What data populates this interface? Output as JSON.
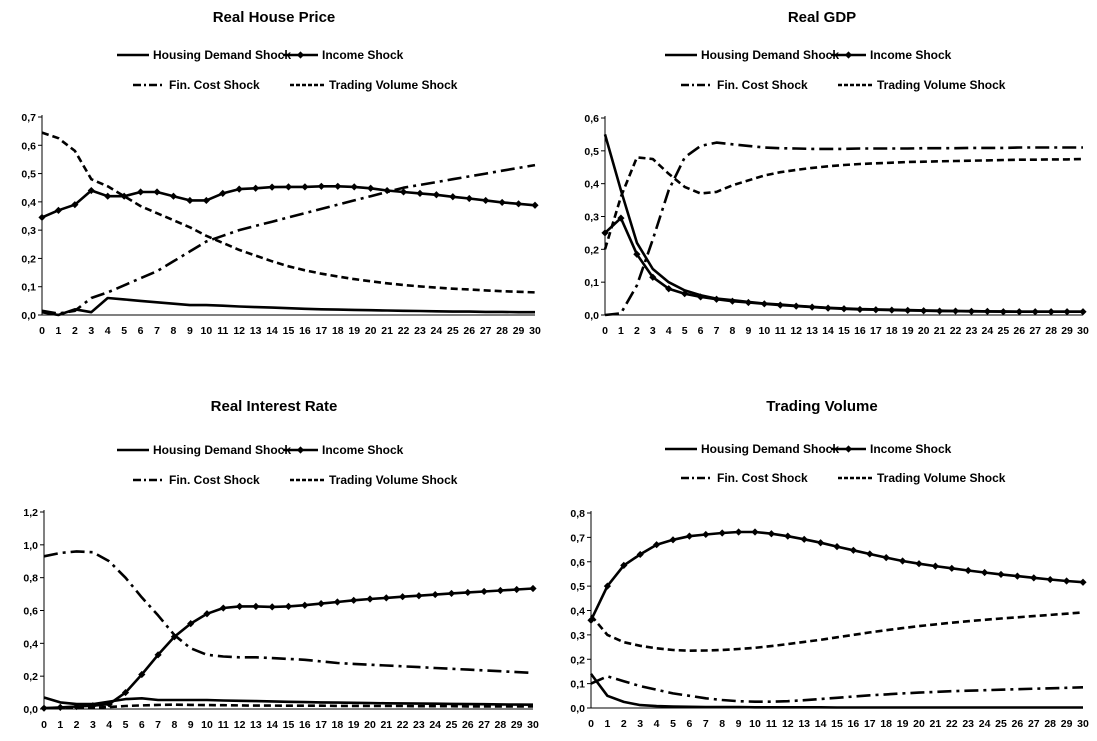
{
  "chart_data": [
    {
      "type": "line",
      "title": "Real House Price",
      "x": [
        0,
        1,
        2,
        3,
        4,
        5,
        6,
        7,
        8,
        9,
        10,
        11,
        12,
        13,
        14,
        15,
        16,
        17,
        18,
        19,
        20,
        21,
        22,
        23,
        24,
        25,
        26,
        27,
        28,
        29,
        30
      ],
      "x_ticks": [
        "0",
        "1",
        "2",
        "3",
        "4",
        "5",
        "6",
        "7",
        "8",
        "9",
        "10",
        "11",
        "12",
        "13",
        "14",
        "15",
        "16",
        "17",
        "18",
        "19",
        "20",
        "21",
        "22",
        "23",
        "24",
        "25",
        "26",
        "27",
        "28",
        "29",
        "30"
      ],
      "ylim": [
        0,
        0.7
      ],
      "y_ticks": [
        "0,0",
        "0,1",
        "0,2",
        "0,3",
        "0,4",
        "0,5",
        "0,6",
        "0,7"
      ],
      "grid": false,
      "legend": "top",
      "series": [
        {
          "name": "Housing Demand Shock",
          "style": "solid",
          "values": [
            0.01,
            0.0,
            0.02,
            0.01,
            0.06,
            0.055,
            0.05,
            0.045,
            0.04,
            0.035,
            0.035,
            0.033,
            0.03,
            0.028,
            0.026,
            0.024,
            0.022,
            0.02,
            0.019,
            0.018,
            0.017,
            0.016,
            0.015,
            0.014,
            0.013,
            0.012,
            0.012,
            0.011,
            0.011,
            0.01,
            0.01
          ]
        },
        {
          "name": "Income Shock",
          "style": "solid-diamond",
          "values": [
            0.345,
            0.37,
            0.39,
            0.44,
            0.42,
            0.42,
            0.435,
            0.435,
            0.42,
            0.405,
            0.405,
            0.43,
            0.445,
            0.448,
            0.452,
            0.453,
            0.453,
            0.455,
            0.455,
            0.453,
            0.448,
            0.44,
            0.435,
            0.43,
            0.425,
            0.418,
            0.412,
            0.405,
            0.398,
            0.393,
            0.388
          ]
        },
        {
          "name": "Fin. Cost Shock",
          "style": "dash-dot",
          "values": [
            0.015,
            0.005,
            0.015,
            0.06,
            0.08,
            0.105,
            0.13,
            0.155,
            0.19,
            0.225,
            0.26,
            0.28,
            0.3,
            0.315,
            0.33,
            0.345,
            0.36,
            0.375,
            0.39,
            0.405,
            0.42,
            0.435,
            0.45,
            0.46,
            0.47,
            0.48,
            0.49,
            0.5,
            0.51,
            0.52,
            0.53
          ]
        },
        {
          "name": "Trading Volume Shock",
          "style": "dashed",
          "values": [
            0.645,
            0.625,
            0.58,
            0.48,
            0.455,
            0.42,
            0.385,
            0.36,
            0.335,
            0.31,
            0.28,
            0.255,
            0.23,
            0.21,
            0.19,
            0.172,
            0.158,
            0.146,
            0.136,
            0.127,
            0.119,
            0.112,
            0.106,
            0.101,
            0.097,
            0.093,
            0.09,
            0.087,
            0.084,
            0.082,
            0.08
          ]
        }
      ]
    },
    {
      "type": "line",
      "title": "Real GDP",
      "x": [
        0,
        1,
        2,
        3,
        4,
        5,
        6,
        7,
        8,
        9,
        10,
        11,
        12,
        13,
        14,
        15,
        16,
        17,
        18,
        19,
        20,
        21,
        22,
        23,
        24,
        25,
        26,
        27,
        28,
        29,
        30
      ],
      "x_ticks": [
        "0",
        "1",
        "2",
        "3",
        "4",
        "5",
        "6",
        "7",
        "8",
        "9",
        "10",
        "11",
        "12",
        "13",
        "14",
        "15",
        "16",
        "17",
        "18",
        "19",
        "20",
        "21",
        "22",
        "23",
        "24",
        "25",
        "26",
        "27",
        "28",
        "29",
        "30"
      ],
      "ylim": [
        0,
        0.6
      ],
      "y_ticks": [
        "0,0",
        "0,1",
        "0,2",
        "0,3",
        "0,4",
        "0,5",
        "0,6"
      ],
      "grid": false,
      "legend": "top",
      "series": [
        {
          "name": "Housing Demand Shock",
          "style": "solid",
          "values": [
            0.55,
            0.38,
            0.22,
            0.14,
            0.1,
            0.075,
            0.06,
            0.05,
            0.045,
            0.04,
            0.035,
            0.032,
            0.028,
            0.025,
            0.022,
            0.02,
            0.018,
            0.017,
            0.016,
            0.015,
            0.014,
            0.013,
            0.012,
            0.012,
            0.011,
            0.011,
            0.01,
            0.01,
            0.01,
            0.01,
            0.01
          ]
        },
        {
          "name": "Income Shock",
          "style": "solid-diamond",
          "values": [
            0.25,
            0.295,
            0.185,
            0.115,
            0.08,
            0.065,
            0.055,
            0.048,
            0.042,
            0.038,
            0.034,
            0.03,
            0.027,
            0.024,
            0.021,
            0.019,
            0.017,
            0.016,
            0.015,
            0.014,
            0.013,
            0.012,
            0.012,
            0.011,
            0.011,
            0.01,
            0.01,
            0.01,
            0.01,
            0.01,
            0.01
          ]
        },
        {
          "name": "Fin. Cost Shock",
          "style": "dash-dot",
          "values": [
            0.0,
            0.005,
            0.09,
            0.23,
            0.38,
            0.48,
            0.515,
            0.525,
            0.52,
            0.515,
            0.51,
            0.508,
            0.507,
            0.506,
            0.506,
            0.506,
            0.507,
            0.507,
            0.507,
            0.507,
            0.508,
            0.508,
            0.508,
            0.509,
            0.509,
            0.509,
            0.51,
            0.51,
            0.51,
            0.51,
            0.51
          ]
        },
        {
          "name": "Trading Volume Shock",
          "style": "dashed",
          "values": [
            0.2,
            0.36,
            0.48,
            0.475,
            0.43,
            0.39,
            0.37,
            0.375,
            0.395,
            0.41,
            0.425,
            0.435,
            0.442,
            0.448,
            0.453,
            0.457,
            0.46,
            0.462,
            0.464,
            0.466,
            0.467,
            0.468,
            0.469,
            0.47,
            0.471,
            0.472,
            0.473,
            0.473,
            0.474,
            0.474,
            0.475
          ]
        }
      ]
    },
    {
      "type": "line",
      "title": "Real Interest Rate",
      "x": [
        0,
        1,
        2,
        3,
        4,
        5,
        6,
        7,
        8,
        9,
        10,
        11,
        12,
        13,
        14,
        15,
        16,
        17,
        18,
        19,
        20,
        21,
        22,
        23,
        24,
        25,
        26,
        27,
        28,
        29,
        30
      ],
      "x_ticks": [
        "0",
        "1",
        "2",
        "3",
        "4",
        "5",
        "6",
        "7",
        "8",
        "9",
        "10",
        "11",
        "12",
        "13",
        "14",
        "15",
        "16",
        "17",
        "18",
        "19",
        "20",
        "21",
        "22",
        "23",
        "24",
        "25",
        "26",
        "27",
        "28",
        "29",
        "30"
      ],
      "ylim": [
        0,
        1.2
      ],
      "y_ticks": [
        "0,0",
        "0,2",
        "0,4",
        "0,6",
        "0,8",
        "1,0",
        "1,2"
      ],
      "grid": false,
      "legend": "top",
      "series": [
        {
          "name": "Housing Demand Shock",
          "style": "solid",
          "values": [
            0.07,
            0.04,
            0.03,
            0.03,
            0.045,
            0.06,
            0.065,
            0.055,
            0.055,
            0.055,
            0.055,
            0.052,
            0.05,
            0.048,
            0.046,
            0.044,
            0.042,
            0.04,
            0.039,
            0.038,
            0.036,
            0.035,
            0.034,
            0.033,
            0.032,
            0.031,
            0.03,
            0.029,
            0.028,
            0.027,
            0.026
          ]
        },
        {
          "name": "Income Shock",
          "style": "solid-diamond",
          "values": [
            0.005,
            0.01,
            0.015,
            0.02,
            0.03,
            0.1,
            0.21,
            0.33,
            0.44,
            0.52,
            0.58,
            0.615,
            0.625,
            0.625,
            0.622,
            0.625,
            0.632,
            0.642,
            0.652,
            0.662,
            0.67,
            0.677,
            0.684,
            0.69,
            0.697,
            0.704,
            0.71,
            0.716,
            0.722,
            0.728,
            0.734
          ]
        },
        {
          "name": "Fin. Cost Shock",
          "style": "dash-dot",
          "values": [
            0.93,
            0.95,
            0.96,
            0.955,
            0.9,
            0.8,
            0.68,
            0.57,
            0.45,
            0.37,
            0.33,
            0.32,
            0.315,
            0.315,
            0.31,
            0.305,
            0.3,
            0.29,
            0.28,
            0.275,
            0.27,
            0.265,
            0.26,
            0.255,
            0.25,
            0.245,
            0.24,
            0.235,
            0.23,
            0.225,
            0.22
          ]
        },
        {
          "name": "Trading Volume Shock",
          "style": "dashed",
          "values": [
            0.005,
            0.005,
            0.005,
            0.008,
            0.012,
            0.018,
            0.022,
            0.025,
            0.026,
            0.025,
            0.024,
            0.023,
            0.022,
            0.021,
            0.021,
            0.02,
            0.02,
            0.02,
            0.019,
            0.019,
            0.018,
            0.018,
            0.018,
            0.017,
            0.017,
            0.017,
            0.016,
            0.016,
            0.016,
            0.015,
            0.015
          ]
        }
      ]
    },
    {
      "type": "line",
      "title": "Trading Volume",
      "x": [
        0,
        1,
        2,
        3,
        4,
        5,
        6,
        7,
        8,
        9,
        10,
        11,
        12,
        13,
        14,
        15,
        16,
        17,
        18,
        19,
        20,
        21,
        22,
        23,
        24,
        25,
        26,
        27,
        28,
        29,
        30
      ],
      "x_ticks": [
        "0",
        "1",
        "2",
        "3",
        "4",
        "5",
        "6",
        "7",
        "8",
        "9",
        "10",
        "11",
        "12",
        "13",
        "14",
        "15",
        "16",
        "17",
        "18",
        "19",
        "20",
        "21",
        "22",
        "23",
        "24",
        "25",
        "26",
        "27",
        "28",
        "29",
        "30"
      ],
      "ylim": [
        0,
        0.8
      ],
      "y_ticks": [
        "0,0",
        "0,1",
        "0,2",
        "0,3",
        "0,4",
        "0,5",
        "0,6",
        "0,7",
        "0,8"
      ],
      "grid": false,
      "legend": "top",
      "series": [
        {
          "name": "Housing Demand Shock",
          "style": "solid",
          "values": [
            0.14,
            0.05,
            0.025,
            0.012,
            0.008,
            0.006,
            0.005,
            0.004,
            0.004,
            0.004,
            0.003,
            0.003,
            0.003,
            0.003,
            0.003,
            0.002,
            0.002,
            0.002,
            0.002,
            0.002,
            0.002,
            0.002,
            0.002,
            0.002,
            0.002,
            0.002,
            0.002,
            0.002,
            0.002,
            0.002,
            0.002
          ]
        },
        {
          "name": "Income Shock",
          "style": "solid-diamond",
          "values": [
            0.36,
            0.5,
            0.585,
            0.63,
            0.67,
            0.69,
            0.705,
            0.712,
            0.718,
            0.722,
            0.722,
            0.715,
            0.705,
            0.692,
            0.678,
            0.662,
            0.647,
            0.632,
            0.617,
            0.603,
            0.592,
            0.582,
            0.573,
            0.564,
            0.556,
            0.548,
            0.541,
            0.534,
            0.527,
            0.521,
            0.516
          ]
        },
        {
          "name": "Fin. Cost Shock",
          "style": "dash-dot",
          "values": [
            0.1,
            0.13,
            0.11,
            0.09,
            0.075,
            0.06,
            0.05,
            0.04,
            0.033,
            0.028,
            0.026,
            0.026,
            0.028,
            0.032,
            0.037,
            0.042,
            0.047,
            0.052,
            0.056,
            0.06,
            0.063,
            0.066,
            0.069,
            0.071,
            0.073,
            0.075,
            0.077,
            0.079,
            0.081,
            0.083,
            0.085
          ]
        },
        {
          "name": "Trading Volume Shock",
          "style": "dashed",
          "values": [
            0.38,
            0.3,
            0.27,
            0.255,
            0.245,
            0.238,
            0.235,
            0.236,
            0.238,
            0.242,
            0.247,
            0.254,
            0.262,
            0.271,
            0.28,
            0.29,
            0.3,
            0.31,
            0.319,
            0.328,
            0.336,
            0.343,
            0.35,
            0.356,
            0.362,
            0.367,
            0.372,
            0.377,
            0.382,
            0.387,
            0.392
          ]
        }
      ]
    }
  ]
}
